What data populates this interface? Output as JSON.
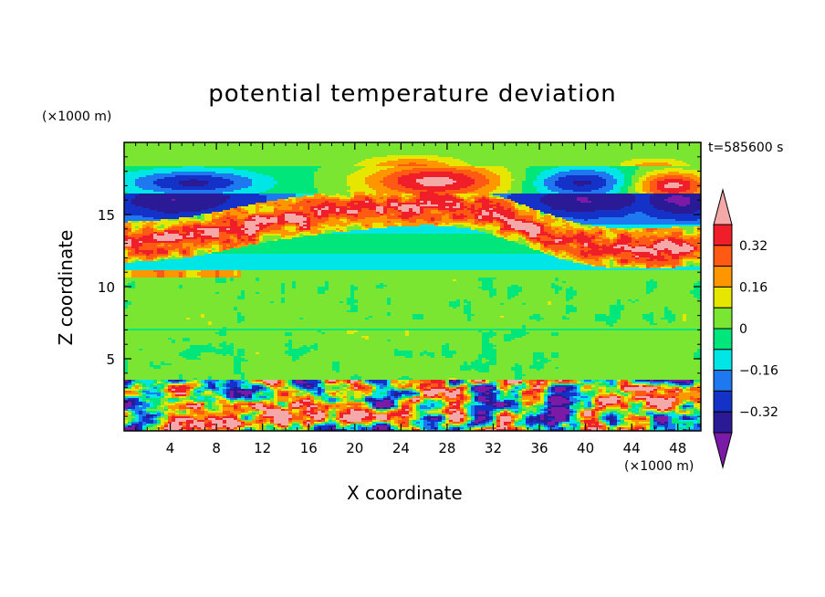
{
  "chart_data": {
    "type": "heatmap",
    "title": "potential temperature deviation",
    "xlabel": "X coordinate",
    "ylabel": "Z coordinate",
    "x_unit": "(×1000 m)",
    "y_unit": "(×1000 m)",
    "time_label": "t=585600 s",
    "xlim": [
      0,
      50
    ],
    "ylim": [
      0,
      20
    ],
    "x_ticks": [
      4,
      8,
      12,
      16,
      20,
      24,
      28,
      32,
      36,
      40,
      44,
      48
    ],
    "y_ticks": [
      5,
      10,
      15
    ],
    "colorbar": {
      "levels": [
        -0.4,
        -0.32,
        -0.24,
        -0.16,
        -0.08,
        0,
        0.08,
        0.16,
        0.24,
        0.32,
        0.4
      ],
      "labeled_levels": [
        0.32,
        0.16,
        0,
        -0.16,
        -0.32
      ],
      "labels": [
        "0.32",
        "0.16",
        "0",
        "−0.16",
        "−0.32"
      ],
      "colors": [
        "#7a1aa6",
        "#2b1a96",
        "#1432c8",
        "#1e78f0",
        "#00e6e6",
        "#00e67a",
        "#7ae632",
        "#e6e600",
        "#ff9600",
        "#ff5a14",
        "#f01e28",
        "#f5a8a8"
      ],
      "extend": "both"
    },
    "bands": [
      {
        "z": [
          0,
          3.5
        ],
        "pattern": "turbulent mixed layer",
        "dominant": "mixed"
      },
      {
        "z": [
          3.5,
          7
        ],
        "pattern": "weak positive",
        "dominant": "#00e67a"
      },
      {
        "z": [
          7,
          10.5
        ],
        "pattern": "weak positive",
        "dominant": "#7ae632"
      },
      {
        "z": [
          10.5,
          14
        ],
        "pattern": "negative",
        "dominant": "#00e6e6"
      },
      {
        "z": [
          14,
          17.5
        ],
        "pattern": "strong anomalies",
        "dominant": "mixed"
      },
      {
        "z": [
          17.5,
          20
        ],
        "pattern": "near zero",
        "dominant": "#7ae632"
      }
    ]
  }
}
